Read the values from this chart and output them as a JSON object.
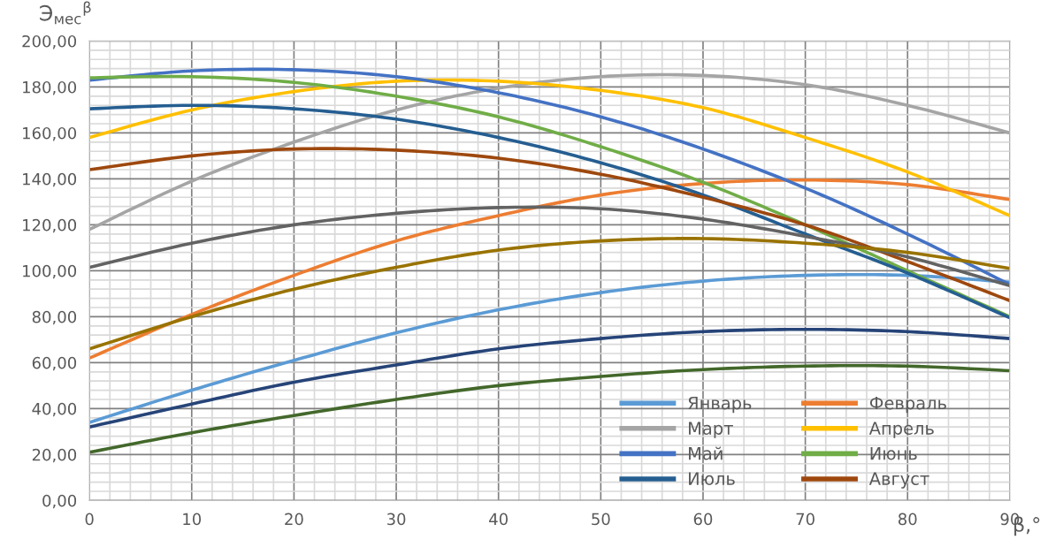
{
  "chart_data": {
    "type": "line",
    "ylabel": "Э$_{мес}$$^{β}$",
    "xlabel": "β,°",
    "x": [
      0,
      10,
      20,
      30,
      40,
      50,
      60,
      70,
      80,
      90
    ],
    "xlim": [
      0,
      90
    ],
    "xticks": [
      0,
      10,
      20,
      30,
      40,
      50,
      60,
      70,
      80,
      90
    ],
    "ylim": [
      0,
      200
    ],
    "yticks": [
      {
        "value": 0,
        "label": "0,00"
      },
      {
        "value": 20,
        "label": "20,00"
      },
      {
        "value": 40,
        "label": "40,00"
      },
      {
        "value": 60,
        "label": "60,00"
      },
      {
        "value": 80,
        "label": "80,00"
      },
      {
        "value": 100,
        "label": "100,00"
      },
      {
        "value": 120,
        "label": "120,00"
      },
      {
        "value": 140,
        "label": "140,00"
      },
      {
        "value": 160,
        "label": "160,00"
      },
      {
        "value": 180,
        "label": "180,00"
      },
      {
        "value": 200,
        "label": "200,00"
      }
    ],
    "grid": true,
    "legend": "bottom right",
    "marker": "none",
    "line_style": "solid",
    "series": [
      {
        "name": "Январь",
        "color": "#5b9bd5",
        "values": [
          34,
          48,
          61,
          73,
          83,
          90.5,
          95.5,
          98,
          98,
          95
        ]
      },
      {
        "name": "Февраль",
        "color": "#ed7d31",
        "values": [
          62,
          81,
          98,
          113,
          124,
          133,
          138,
          139.5,
          137.5,
          131
        ]
      },
      {
        "name": "Март",
        "color": "#a5a5a5",
        "values": [
          118,
          139,
          156,
          170,
          179.5,
          184.5,
          185,
          181,
          172,
          160
        ]
      },
      {
        "name": "Апрель",
        "color": "#ffc000",
        "values": [
          158,
          170,
          178,
          182.5,
          182.5,
          178.5,
          171,
          158,
          143,
          124
        ]
      },
      {
        "name": "Май",
        "color": "#4472c4",
        "values": [
          183,
          187,
          187.5,
          184.5,
          177.5,
          167,
          153,
          136,
          116,
          94
        ]
      },
      {
        "name": "Июнь",
        "color": "#70ad47",
        "values": [
          184,
          184.5,
          182,
          176,
          167,
          154,
          138.5,
          120,
          100,
          80
        ]
      },
      {
        "name": "Июль",
        "color": "#255e91",
        "values": [
          170.5,
          172,
          170.5,
          166,
          158,
          147,
          133,
          116,
          99,
          79.5
        ]
      },
      {
        "name": "Август",
        "color": "#9e480e",
        "values": [
          144,
          150,
          153,
          152.5,
          149,
          142,
          132,
          120,
          104,
          87
        ]
      },
      {
        "color": "#636363",
        "values": [
          101.5,
          112,
          120,
          125,
          127.5,
          127,
          122.5,
          115,
          106,
          93.5
        ]
      },
      {
        "color": "#997300",
        "values": [
          66,
          80,
          92,
          101.5,
          109,
          113,
          114,
          112,
          108,
          101
        ]
      },
      {
        "color": "#264478",
        "values": [
          32,
          42,
          51.5,
          59,
          66,
          70.5,
          73.5,
          74.5,
          73.5,
          70.5
        ]
      },
      {
        "color": "#43682b",
        "values": [
          21,
          29.5,
          37,
          44,
          50,
          54,
          57,
          58.5,
          58.5,
          56.5
        ]
      }
    ]
  }
}
